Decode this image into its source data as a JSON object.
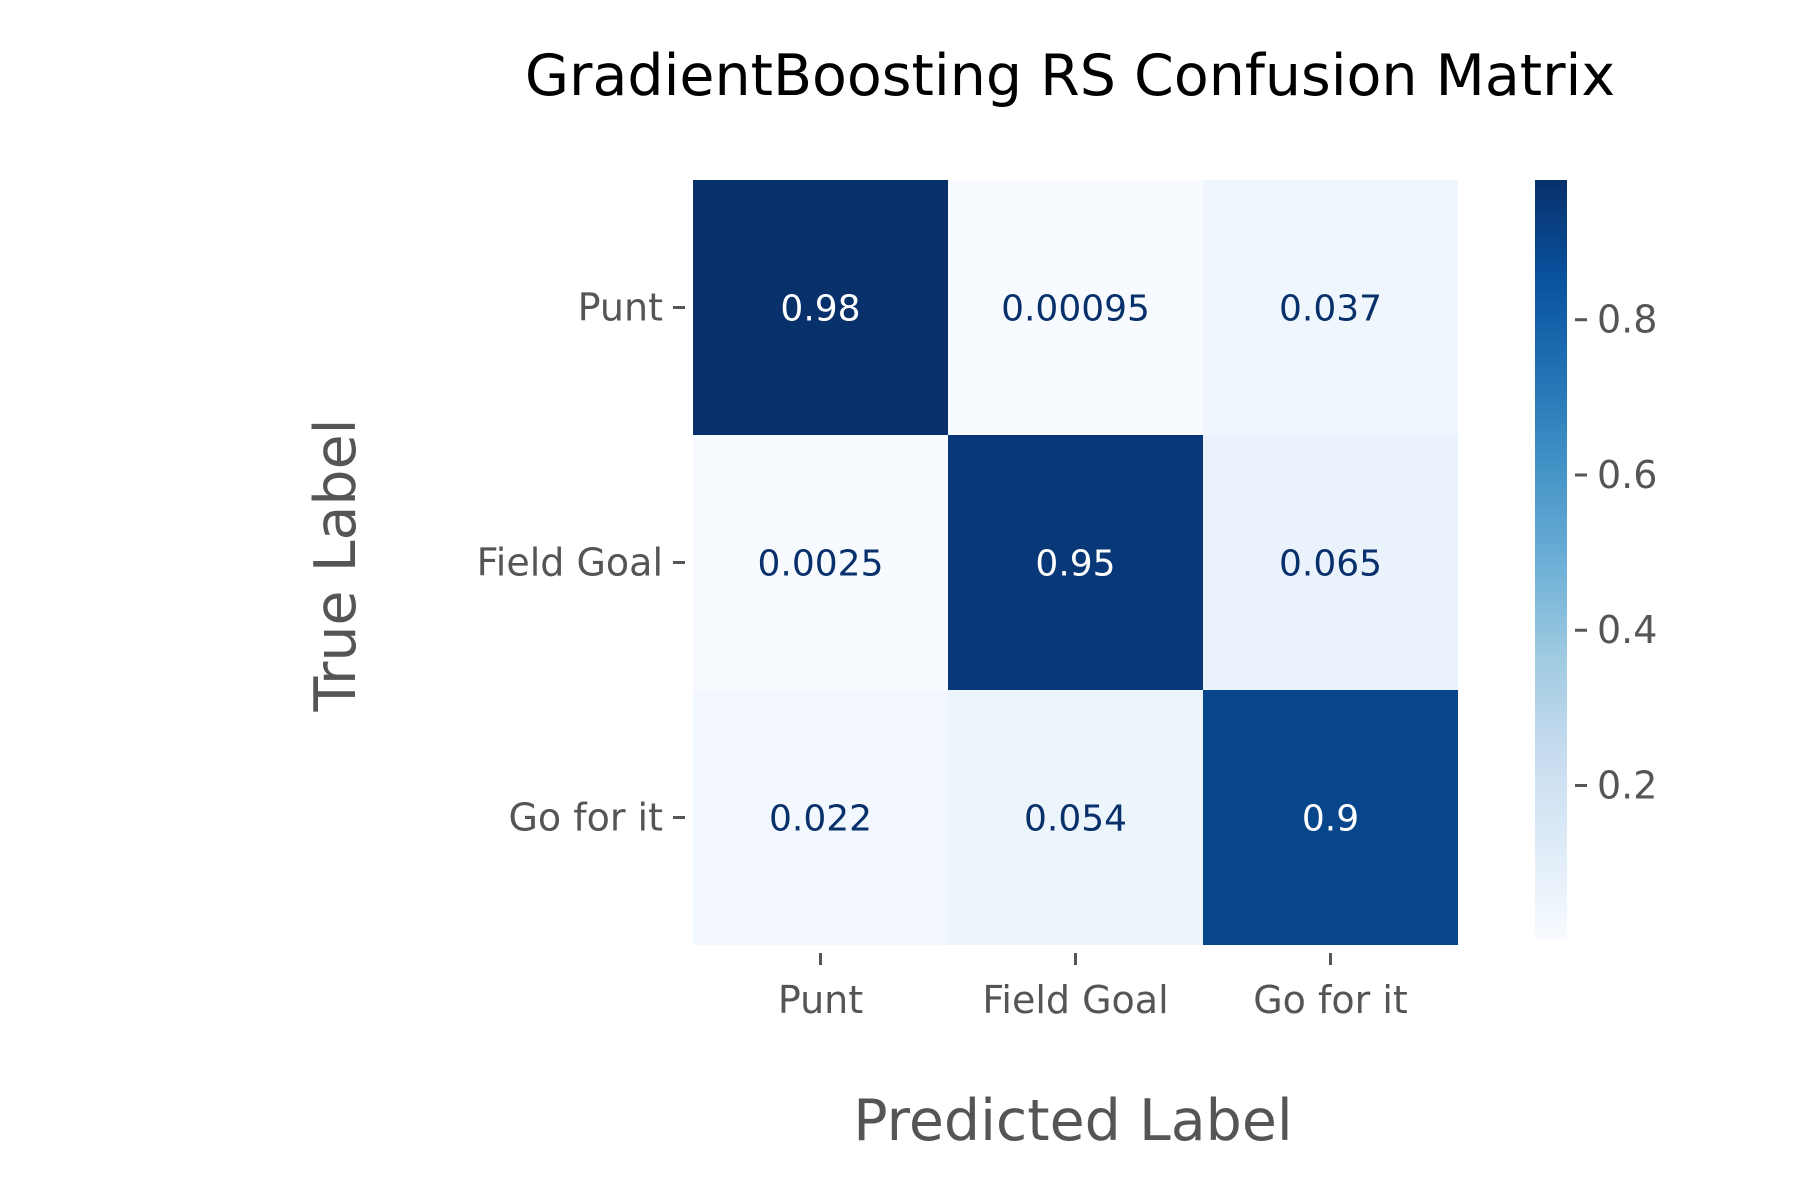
{
  "chart_data": {
    "type": "heatmap",
    "title": "GradientBoosting RS Confusion Matrix",
    "xlabel": "Predicted Label",
    "ylabel": "True Label",
    "x_categories": [
      "Punt",
      "Field Goal",
      "Go for it"
    ],
    "y_categories": [
      "Punt",
      "Field Goal",
      "Go for it"
    ],
    "matrix": [
      [
        0.98,
        0.00095,
        0.037
      ],
      [
        0.0025,
        0.95,
        0.065
      ],
      [
        0.022,
        0.054,
        0.9
      ]
    ],
    "cell_labels": [
      [
        "0.98",
        "0.00095",
        "0.037"
      ],
      [
        "0.0025",
        "0.95",
        "0.065"
      ],
      [
        "0.022",
        "0.054",
        "0.9"
      ]
    ],
    "colormap": "Blues",
    "colorbar": {
      "range": [
        0.00095,
        0.98
      ],
      "ticks": [
        0.2,
        0.4,
        0.6,
        0.8
      ],
      "tick_labels": [
        "0.2",
        "0.4",
        "0.6",
        "0.8"
      ]
    },
    "colors": {
      "text_dark": "#08306b",
      "text_light": "#ffffff",
      "axis_text": "#555555",
      "title_text": "#000000"
    }
  }
}
